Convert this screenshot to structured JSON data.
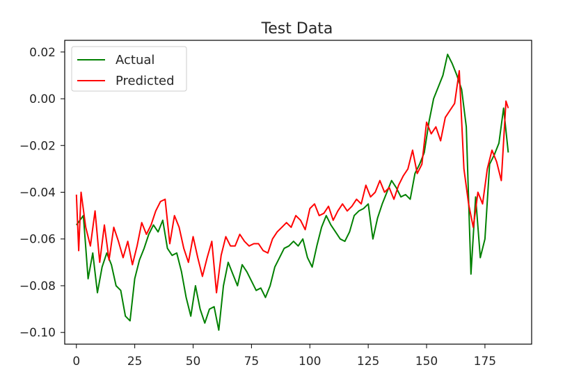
{
  "chart_data": {
    "type": "line",
    "title": "Test Data",
    "xlabel": "",
    "ylabel": "",
    "xlim": [
      -5,
      195
    ],
    "ylim": [
      -0.105,
      0.025
    ],
    "x_ticks": [
      0,
      25,
      50,
      75,
      100,
      125,
      150,
      175
    ],
    "x_tick_labels": [
      "0",
      "25",
      "50",
      "75",
      "100",
      "125",
      "150",
      "175"
    ],
    "y_ticks": [
      0.02,
      0.0,
      -0.02,
      -0.04,
      -0.06,
      -0.08,
      -0.1
    ],
    "y_tick_labels": [
      "0.02",
      "0.00",
      "−0.02",
      "−0.04",
      "−0.06",
      "−0.08",
      "−0.10"
    ],
    "grid": false,
    "legend": "top-left",
    "series": [
      {
        "name": "Actual",
        "color": "#008000",
        "x": [
          0,
          3,
          5,
          7,
          9,
          11,
          13,
          15,
          17,
          19,
          21,
          23,
          25,
          27,
          29,
          31,
          33,
          35,
          37,
          39,
          41,
          43,
          45,
          47,
          49,
          51,
          53,
          55,
          57,
          59,
          61,
          63,
          65,
          67,
          69,
          71,
          73,
          75,
          77,
          79,
          81,
          83,
          85,
          87,
          89,
          91,
          93,
          95,
          97,
          99,
          101,
          103,
          105,
          107,
          109,
          111,
          113,
          115,
          117,
          119,
          121,
          123,
          125,
          127,
          129,
          131,
          133,
          135,
          137,
          139,
          141,
          143,
          145,
          147,
          149,
          151,
          153,
          155,
          157,
          159,
          161,
          163,
          165,
          167,
          169,
          171,
          173,
          175,
          177,
          179,
          181,
          183,
          185
        ],
        "values": [
          -0.054,
          -0.05,
          -0.077,
          -0.066,
          -0.083,
          -0.072,
          -0.066,
          -0.071,
          -0.08,
          -0.082,
          -0.093,
          -0.095,
          -0.077,
          -0.069,
          -0.064,
          -0.058,
          -0.054,
          -0.057,
          -0.052,
          -0.064,
          -0.067,
          -0.066,
          -0.074,
          -0.085,
          -0.093,
          -0.08,
          -0.09,
          -0.096,
          -0.09,
          -0.089,
          -0.099,
          -0.08,
          -0.07,
          -0.075,
          -0.08,
          -0.071,
          -0.074,
          -0.078,
          -0.082,
          -0.081,
          -0.085,
          -0.08,
          -0.072,
          -0.068,
          -0.064,
          -0.063,
          -0.061,
          -0.063,
          -0.06,
          -0.068,
          -0.072,
          -0.063,
          -0.055,
          -0.05,
          -0.054,
          -0.057,
          -0.06,
          -0.061,
          -0.057,
          -0.05,
          -0.048,
          -0.047,
          -0.045,
          -0.06,
          -0.051,
          -0.045,
          -0.04,
          -0.035,
          -0.038,
          -0.042,
          -0.041,
          -0.043,
          -0.032,
          -0.028,
          -0.023,
          -0.01,
          0.0,
          0.005,
          0.01,
          0.019,
          0.015,
          0.01,
          0.004,
          -0.012,
          -0.075,
          -0.042,
          -0.068,
          -0.06,
          -0.028,
          -0.024,
          -0.019,
          -0.004,
          -0.023
        ]
      },
      {
        "name": "Predicted",
        "color": "#ff0000",
        "x": [
          0,
          1,
          2,
          4,
          6,
          8,
          10,
          12,
          14,
          16,
          18,
          20,
          22,
          24,
          26,
          28,
          30,
          32,
          34,
          36,
          38,
          40,
          42,
          44,
          46,
          48,
          50,
          52,
          54,
          56,
          58,
          60,
          62,
          64,
          66,
          68,
          70,
          72,
          74,
          76,
          78,
          80,
          82,
          84,
          86,
          88,
          90,
          92,
          94,
          96,
          98,
          100,
          102,
          104,
          106,
          108,
          110,
          112,
          114,
          116,
          118,
          120,
          122,
          124,
          126,
          128,
          130,
          132,
          134,
          136,
          138,
          140,
          142,
          144,
          146,
          148,
          150,
          152,
          154,
          156,
          158,
          160,
          162,
          164,
          166,
          168,
          170,
          172,
          174,
          176,
          178,
          180,
          182,
          184,
          185
        ],
        "values": [
          -0.041,
          -0.065,
          -0.04,
          -0.055,
          -0.063,
          -0.048,
          -0.07,
          -0.054,
          -0.069,
          -0.055,
          -0.061,
          -0.068,
          -0.061,
          -0.071,
          -0.063,
          -0.053,
          -0.058,
          -0.054,
          -0.048,
          -0.044,
          -0.043,
          -0.062,
          -0.05,
          -0.055,
          -0.064,
          -0.07,
          -0.059,
          -0.068,
          -0.076,
          -0.068,
          -0.061,
          -0.083,
          -0.067,
          -0.059,
          -0.063,
          -0.063,
          -0.058,
          -0.061,
          -0.063,
          -0.062,
          -0.062,
          -0.065,
          -0.066,
          -0.06,
          -0.057,
          -0.055,
          -0.053,
          -0.055,
          -0.05,
          -0.052,
          -0.056,
          -0.047,
          -0.045,
          -0.05,
          -0.049,
          -0.046,
          -0.052,
          -0.048,
          -0.045,
          -0.048,
          -0.046,
          -0.043,
          -0.045,
          -0.037,
          -0.042,
          -0.04,
          -0.035,
          -0.04,
          -0.038,
          -0.043,
          -0.037,
          -0.033,
          -0.03,
          -0.022,
          -0.032,
          -0.028,
          -0.01,
          -0.015,
          -0.012,
          -0.018,
          -0.008,
          -0.005,
          -0.002,
          0.012,
          -0.03,
          -0.045,
          -0.055,
          -0.04,
          -0.045,
          -0.03,
          -0.022,
          -0.027,
          -0.035,
          -0.001,
          -0.004
        ]
      }
    ]
  }
}
